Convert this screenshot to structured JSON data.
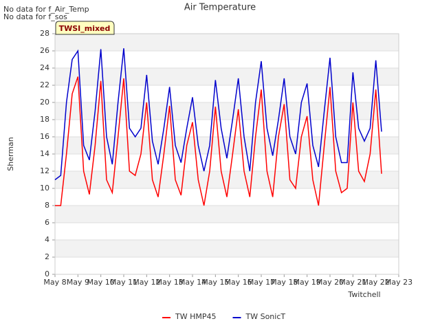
{
  "notes": [
    "No data for f_Air_Temp",
    "No data for f_sos"
  ],
  "chart_data": {
    "type": "line",
    "title": "Air Temperature",
    "xlabel": "Twitchell",
    "ylabel": "Sherman",
    "annotation": "TWSI_mixed",
    "x": [
      8,
      8.25,
      8.5,
      8.75,
      9,
      9.25,
      9.5,
      9.75,
      10,
      10.25,
      10.5,
      10.75,
      11,
      11.25,
      11.5,
      11.75,
      12,
      12.25,
      12.5,
      12.75,
      13,
      13.25,
      13.5,
      13.75,
      14,
      14.25,
      14.5,
      14.75,
      15,
      15.25,
      15.5,
      15.75,
      16,
      16.25,
      16.5,
      16.75,
      17,
      17.25,
      17.5,
      17.75,
      18,
      18.25,
      18.5,
      18.75,
      19,
      19.25,
      19.5,
      19.75,
      20,
      20.25,
      20.5,
      20.75,
      21,
      21.25,
      21.5,
      21.75,
      22,
      22.25
    ],
    "series": [
      {
        "name": "TW HMP45",
        "color": "#ff0000",
        "values": [
          8,
          8,
          14,
          21,
          23,
          12,
          9.3,
          15,
          22.5,
          11,
          9.5,
          16,
          22.8,
          12,
          11.5,
          14,
          20,
          11,
          9,
          14,
          19.6,
          11,
          9.2,
          15,
          17.7,
          11,
          8,
          12,
          19.5,
          12,
          9,
          14,
          19.2,
          12,
          9,
          16,
          21.5,
          12,
          9,
          16,
          19.8,
          11,
          10,
          16,
          18.4,
          11,
          8,
          15,
          21.8,
          12,
          9.5,
          10,
          20,
          12,
          10.8,
          14,
          21.5,
          11.7
        ]
      },
      {
        "name": "TW SonicT",
        "color": "#0000cc",
        "values": [
          11,
          11.5,
          20,
          25,
          26,
          15,
          13.3,
          19,
          26.2,
          16,
          12.8,
          20,
          26.3,
          17,
          16,
          17,
          23.2,
          15.5,
          12.8,
          17,
          21.8,
          15,
          13,
          17,
          20.6,
          15,
          12,
          15,
          22.6,
          17,
          13.5,
          18,
          22.8,
          16,
          12,
          20,
          24.8,
          17,
          13.8,
          18,
          22.8,
          16,
          14,
          20,
          22.2,
          15,
          12.5,
          19,
          25.2,
          16,
          13,
          13,
          23.5,
          17,
          15.5,
          17,
          24.9,
          16.6
        ]
      }
    ],
    "xlim": [
      8,
      23
    ],
    "xticks": [
      {
        "value": 8,
        "label": "May 8"
      },
      {
        "value": 9,
        "label": "May 9"
      },
      {
        "value": 10,
        "label": "May 10"
      },
      {
        "value": 11,
        "label": "May 11"
      },
      {
        "value": 12,
        "label": "May 12"
      },
      {
        "value": 13,
        "label": "May 13"
      },
      {
        "value": 14,
        "label": "May 14"
      },
      {
        "value": 15,
        "label": "May 15"
      },
      {
        "value": 16,
        "label": "May 16"
      },
      {
        "value": 17,
        "label": "May 17"
      },
      {
        "value": 18,
        "label": "May 18"
      },
      {
        "value": 19,
        "label": "May 19"
      },
      {
        "value": 20,
        "label": "May 20"
      },
      {
        "value": 21,
        "label": "May 21"
      },
      {
        "value": 22,
        "label": "May 22"
      },
      {
        "value": 23,
        "label": "May 23"
      }
    ],
    "ylim": [
      0,
      28
    ],
    "yticks": [
      0,
      2,
      4,
      6,
      8,
      10,
      12,
      14,
      16,
      18,
      20,
      22,
      24,
      26,
      28
    ],
    "grid": true,
    "legend": "bottom"
  }
}
